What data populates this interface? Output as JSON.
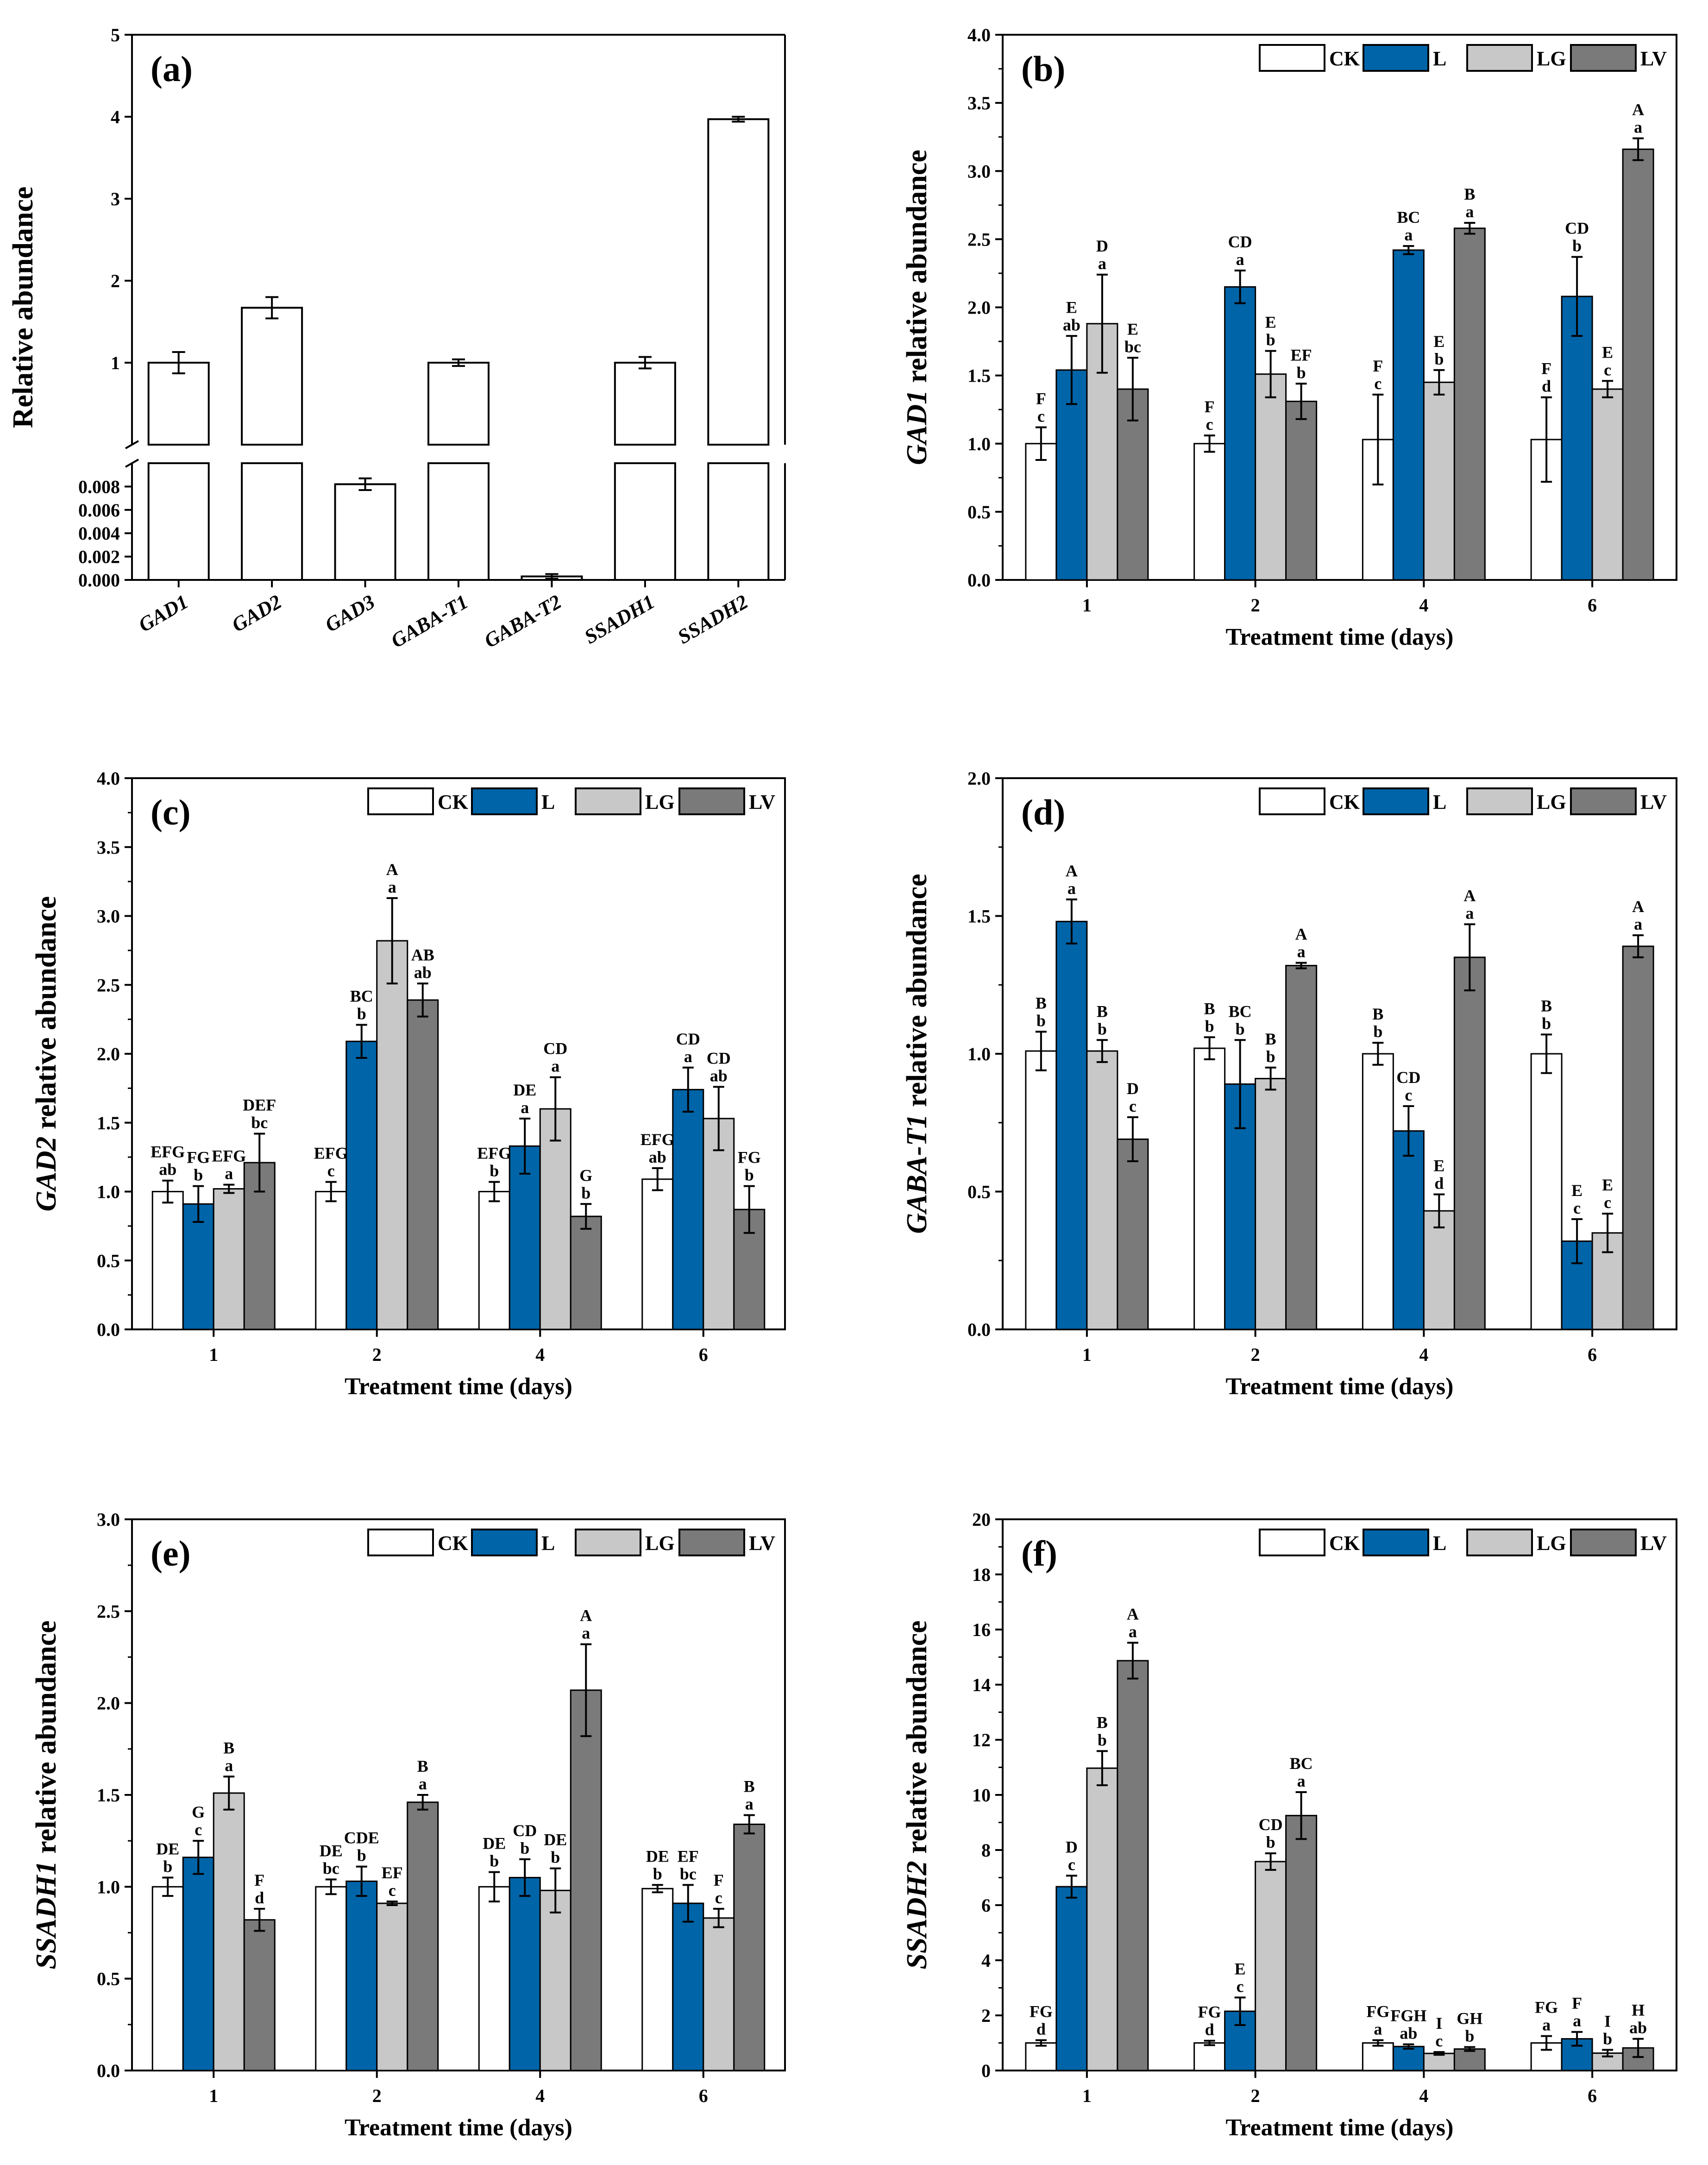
{
  "colors": {
    "CK": "#ffffff",
    "L": "#0064a8",
    "LG": "#c8c8c8",
    "LV": "#7a7a7a"
  },
  "chart_data": [
    {
      "panel": "(a)",
      "type": "bar",
      "ylabel": "Relative abundance",
      "categories": [
        "GAD1",
        "GAD2",
        "GAD3",
        "GABA-T1",
        "GABA-T2",
        "SSADH1",
        "SSADH2"
      ],
      "values": [
        1.0,
        1.67,
        0.0082,
        1.0,
        0.0003,
        1.0,
        3.97
      ],
      "errors": [
        0.13,
        0.13,
        0.0005,
        0.04,
        0.0002,
        0.07,
        0.03
      ],
      "broken_axis": true,
      "lower_range": [
        0,
        0.01
      ],
      "upper_range": [
        0,
        5
      ],
      "lower_ticks": [
        "0.000",
        "0.002",
        "0.004",
        "0.006",
        "0.008"
      ],
      "upper_ticks": [
        "1",
        "2",
        "3",
        "4",
        "5"
      ]
    },
    {
      "panel": "(b)",
      "type": "bar",
      "gene": "GAD1",
      "ylabel_rest": " relative abundance",
      "xlabel": "Treatment time (days)",
      "categories": [
        "1",
        "2",
        "4",
        "6"
      ],
      "ylim": [
        0,
        4.0
      ],
      "yticks": [
        "0.0",
        "0.5",
        "1.0",
        "1.5",
        "2.0",
        "2.5",
        "3.0",
        "3.5",
        "4.0"
      ],
      "series": [
        {
          "name": "CK",
          "values": [
            1.0,
            1.0,
            1.03,
            1.03
          ],
          "errors": [
            0.12,
            0.06,
            0.33,
            0.31
          ],
          "upper": [
            "F",
            "F",
            "F",
            "F"
          ],
          "lower": [
            "c",
            "c",
            "c",
            "d"
          ]
        },
        {
          "name": "L",
          "values": [
            1.54,
            2.15,
            2.42,
            2.08
          ],
          "errors": [
            0.25,
            0.12,
            0.03,
            0.29
          ],
          "upper": [
            "E",
            "CD",
            "BC",
            "CD"
          ],
          "lower": [
            "ab",
            "a",
            "a",
            "b"
          ]
        },
        {
          "name": "LG",
          "values": [
            1.88,
            1.51,
            1.45,
            1.4
          ],
          "errors": [
            0.36,
            0.17,
            0.09,
            0.06
          ],
          "upper": [
            "D",
            "E",
            "E",
            "E"
          ],
          "lower": [
            "a",
            "b",
            "b",
            "c"
          ]
        },
        {
          "name": "LV",
          "values": [
            1.4,
            1.31,
            2.58,
            3.16
          ],
          "errors": [
            0.23,
            0.13,
            0.04,
            0.08
          ],
          "upper": [
            "E",
            "EF",
            "B",
            "A"
          ],
          "lower": [
            "bc",
            "b",
            "a",
            "a"
          ]
        }
      ]
    },
    {
      "panel": "(c)",
      "type": "bar",
      "gene": "GAD2",
      "ylabel_rest": " relative abundance",
      "xlabel": "Treatment time (days)",
      "categories": [
        "1",
        "2",
        "4",
        "6"
      ],
      "ylim": [
        0,
        4.0
      ],
      "yticks": [
        "0.0",
        "0.5",
        "1.0",
        "1.5",
        "2.0",
        "2.5",
        "3.0",
        "3.5",
        "4.0"
      ],
      "series": [
        {
          "name": "CK",
          "values": [
            1.0,
            1.0,
            1.0,
            1.09
          ],
          "errors": [
            0.08,
            0.07,
            0.07,
            0.08
          ],
          "upper": [
            "EFG",
            "EFG",
            "EFG",
            "EFG"
          ],
          "lower": [
            "ab",
            "c",
            "b",
            "ab"
          ]
        },
        {
          "name": "L",
          "values": [
            0.91,
            2.09,
            1.33,
            1.74
          ],
          "errors": [
            0.13,
            0.12,
            0.2,
            0.16
          ],
          "upper": [
            "FG",
            "BC",
            "DE",
            "CD"
          ],
          "lower": [
            "b",
            "b",
            "a",
            "a"
          ]
        },
        {
          "name": "LG",
          "values": [
            1.02,
            2.82,
            1.6,
            1.53
          ],
          "errors": [
            0.03,
            0.31,
            0.23,
            0.23
          ],
          "upper": [
            "EFG",
            "A",
            "CD",
            "CD"
          ],
          "lower": [
            "a",
            "a",
            "a",
            "ab"
          ]
        },
        {
          "name": "LV",
          "values": [
            1.21,
            2.39,
            0.82,
            0.87
          ],
          "errors": [
            0.21,
            0.12,
            0.09,
            0.17
          ],
          "upper": [
            "DEF",
            "AB",
            "G",
            "FG"
          ],
          "lower": [
            "bc",
            "ab",
            "b",
            "b"
          ]
        }
      ]
    },
    {
      "panel": "(d)",
      "type": "bar",
      "gene": "GABA-T1",
      "ylabel_rest": " relative abundance",
      "xlabel": "Treatment time (days)",
      "categories": [
        "1",
        "2",
        "4",
        "6"
      ],
      "ylim": [
        0,
        2.0
      ],
      "yticks": [
        "0.0",
        "0.5",
        "1.0",
        "1.5",
        "2.0"
      ],
      "series": [
        {
          "name": "CK",
          "values": [
            1.01,
            1.02,
            1.0,
            1.0
          ],
          "errors": [
            0.07,
            0.04,
            0.04,
            0.07
          ],
          "upper": [
            "B",
            "B",
            "B",
            "B"
          ],
          "lower": [
            "b",
            "b",
            "b",
            "b"
          ]
        },
        {
          "name": "L",
          "values": [
            1.48,
            0.89,
            0.72,
            0.32
          ],
          "errors": [
            0.08,
            0.16,
            0.09,
            0.08
          ],
          "upper": [
            "A",
            "BC",
            "CD",
            "E"
          ],
          "lower": [
            "a",
            "b",
            "c",
            "c"
          ]
        },
        {
          "name": "LG",
          "values": [
            1.01,
            0.91,
            0.43,
            0.35
          ],
          "errors": [
            0.04,
            0.04,
            0.06,
            0.07
          ],
          "upper": [
            "B",
            "B",
            "E",
            "E"
          ],
          "lower": [
            "b",
            "b",
            "d",
            "c"
          ]
        },
        {
          "name": "LV",
          "values": [
            0.69,
            1.32,
            1.35,
            1.39
          ],
          "errors": [
            0.08,
            0.01,
            0.12,
            0.04
          ],
          "upper": [
            "D",
            "A",
            "A",
            "A"
          ],
          "lower": [
            "c",
            "a",
            "a",
            "a"
          ]
        }
      ]
    },
    {
      "panel": "(e)",
      "type": "bar",
      "gene": "SSADH1",
      "ylabel_rest": " relative abundance",
      "xlabel": "Treatment time (days)",
      "categories": [
        "1",
        "2",
        "4",
        "6"
      ],
      "ylim": [
        0,
        3.0
      ],
      "yticks": [
        "0.0",
        "0.5",
        "1.0",
        "1.5",
        "2.0",
        "2.5",
        "3.0"
      ],
      "series": [
        {
          "name": "CK",
          "values": [
            1.0,
            1.0,
            1.0,
            0.99
          ],
          "errors": [
            0.05,
            0.04,
            0.08,
            0.02
          ],
          "upper": [
            "DE",
            "DE",
            "DE",
            "DE"
          ],
          "lower": [
            "b",
            "bc",
            "b",
            "b"
          ]
        },
        {
          "name": "L",
          "values": [
            1.16,
            1.03,
            1.05,
            0.91
          ],
          "errors": [
            0.09,
            0.08,
            0.1,
            0.1
          ],
          "upper": [
            "G",
            "CDE",
            "CD",
            "EF"
          ],
          "lower": [
            "c",
            "b",
            "b",
            "bc"
          ]
        },
        {
          "name": "LG",
          "values": [
            1.51,
            0.91,
            0.98,
            0.83
          ],
          "errors": [
            0.09,
            0.01,
            0.12,
            0.05
          ],
          "upper": [
            "B",
            "EF",
            "DE",
            "F"
          ],
          "lower": [
            "a",
            "c",
            "b",
            "c"
          ]
        },
        {
          "name": "LV",
          "values": [
            0.82,
            1.46,
            2.07,
            1.34
          ],
          "errors": [
            0.06,
            0.04,
            0.25,
            0.05
          ],
          "upper": [
            "F",
            "B",
            "A",
            "B"
          ],
          "lower": [
            "d",
            "a",
            "a",
            "a"
          ]
        }
      ]
    },
    {
      "panel": "(f)",
      "type": "bar",
      "gene": "SSADH2",
      "ylabel_rest": " relative abundance",
      "xlabel": "Treatment time (days)",
      "categories": [
        "1",
        "2",
        "4",
        "6"
      ],
      "ylim": [
        0,
        20
      ],
      "yticks": [
        "0",
        "2",
        "4",
        "6",
        "8",
        "10",
        "12",
        "14",
        "16",
        "18",
        "20"
      ],
      "series": [
        {
          "name": "CK",
          "values": [
            1.0,
            1.0,
            1.0,
            1.0
          ],
          "errors": [
            0.1,
            0.08,
            0.1,
            0.25
          ],
          "upper": [
            "FG",
            "FG",
            "FG",
            "FG"
          ],
          "lower": [
            "d",
            "d",
            "a",
            "a"
          ]
        },
        {
          "name": "L",
          "values": [
            6.67,
            2.15,
            0.87,
            1.15
          ],
          "errors": [
            0.4,
            0.5,
            0.08,
            0.25
          ],
          "upper": [
            "D",
            "E",
            "FGH",
            "F"
          ],
          "lower": [
            "c",
            "c",
            "ab",
            "a"
          ]
        },
        {
          "name": "LG",
          "values": [
            10.97,
            7.58,
            0.62,
            0.63
          ],
          "errors": [
            0.62,
            0.3,
            0.05,
            0.12
          ],
          "upper": [
            "B",
            "CD",
            "I",
            "I"
          ],
          "lower": [
            "b",
            "b",
            "c",
            "b"
          ]
        },
        {
          "name": "LV",
          "values": [
            14.87,
            9.25,
            0.78,
            0.82
          ],
          "errors": [
            0.65,
            0.85,
            0.07,
            0.33
          ],
          "upper": [
            "A",
            "BC",
            "GH",
            "H"
          ],
          "lower": [
            "a",
            "a",
            "b",
            "ab"
          ]
        }
      ]
    }
  ]
}
